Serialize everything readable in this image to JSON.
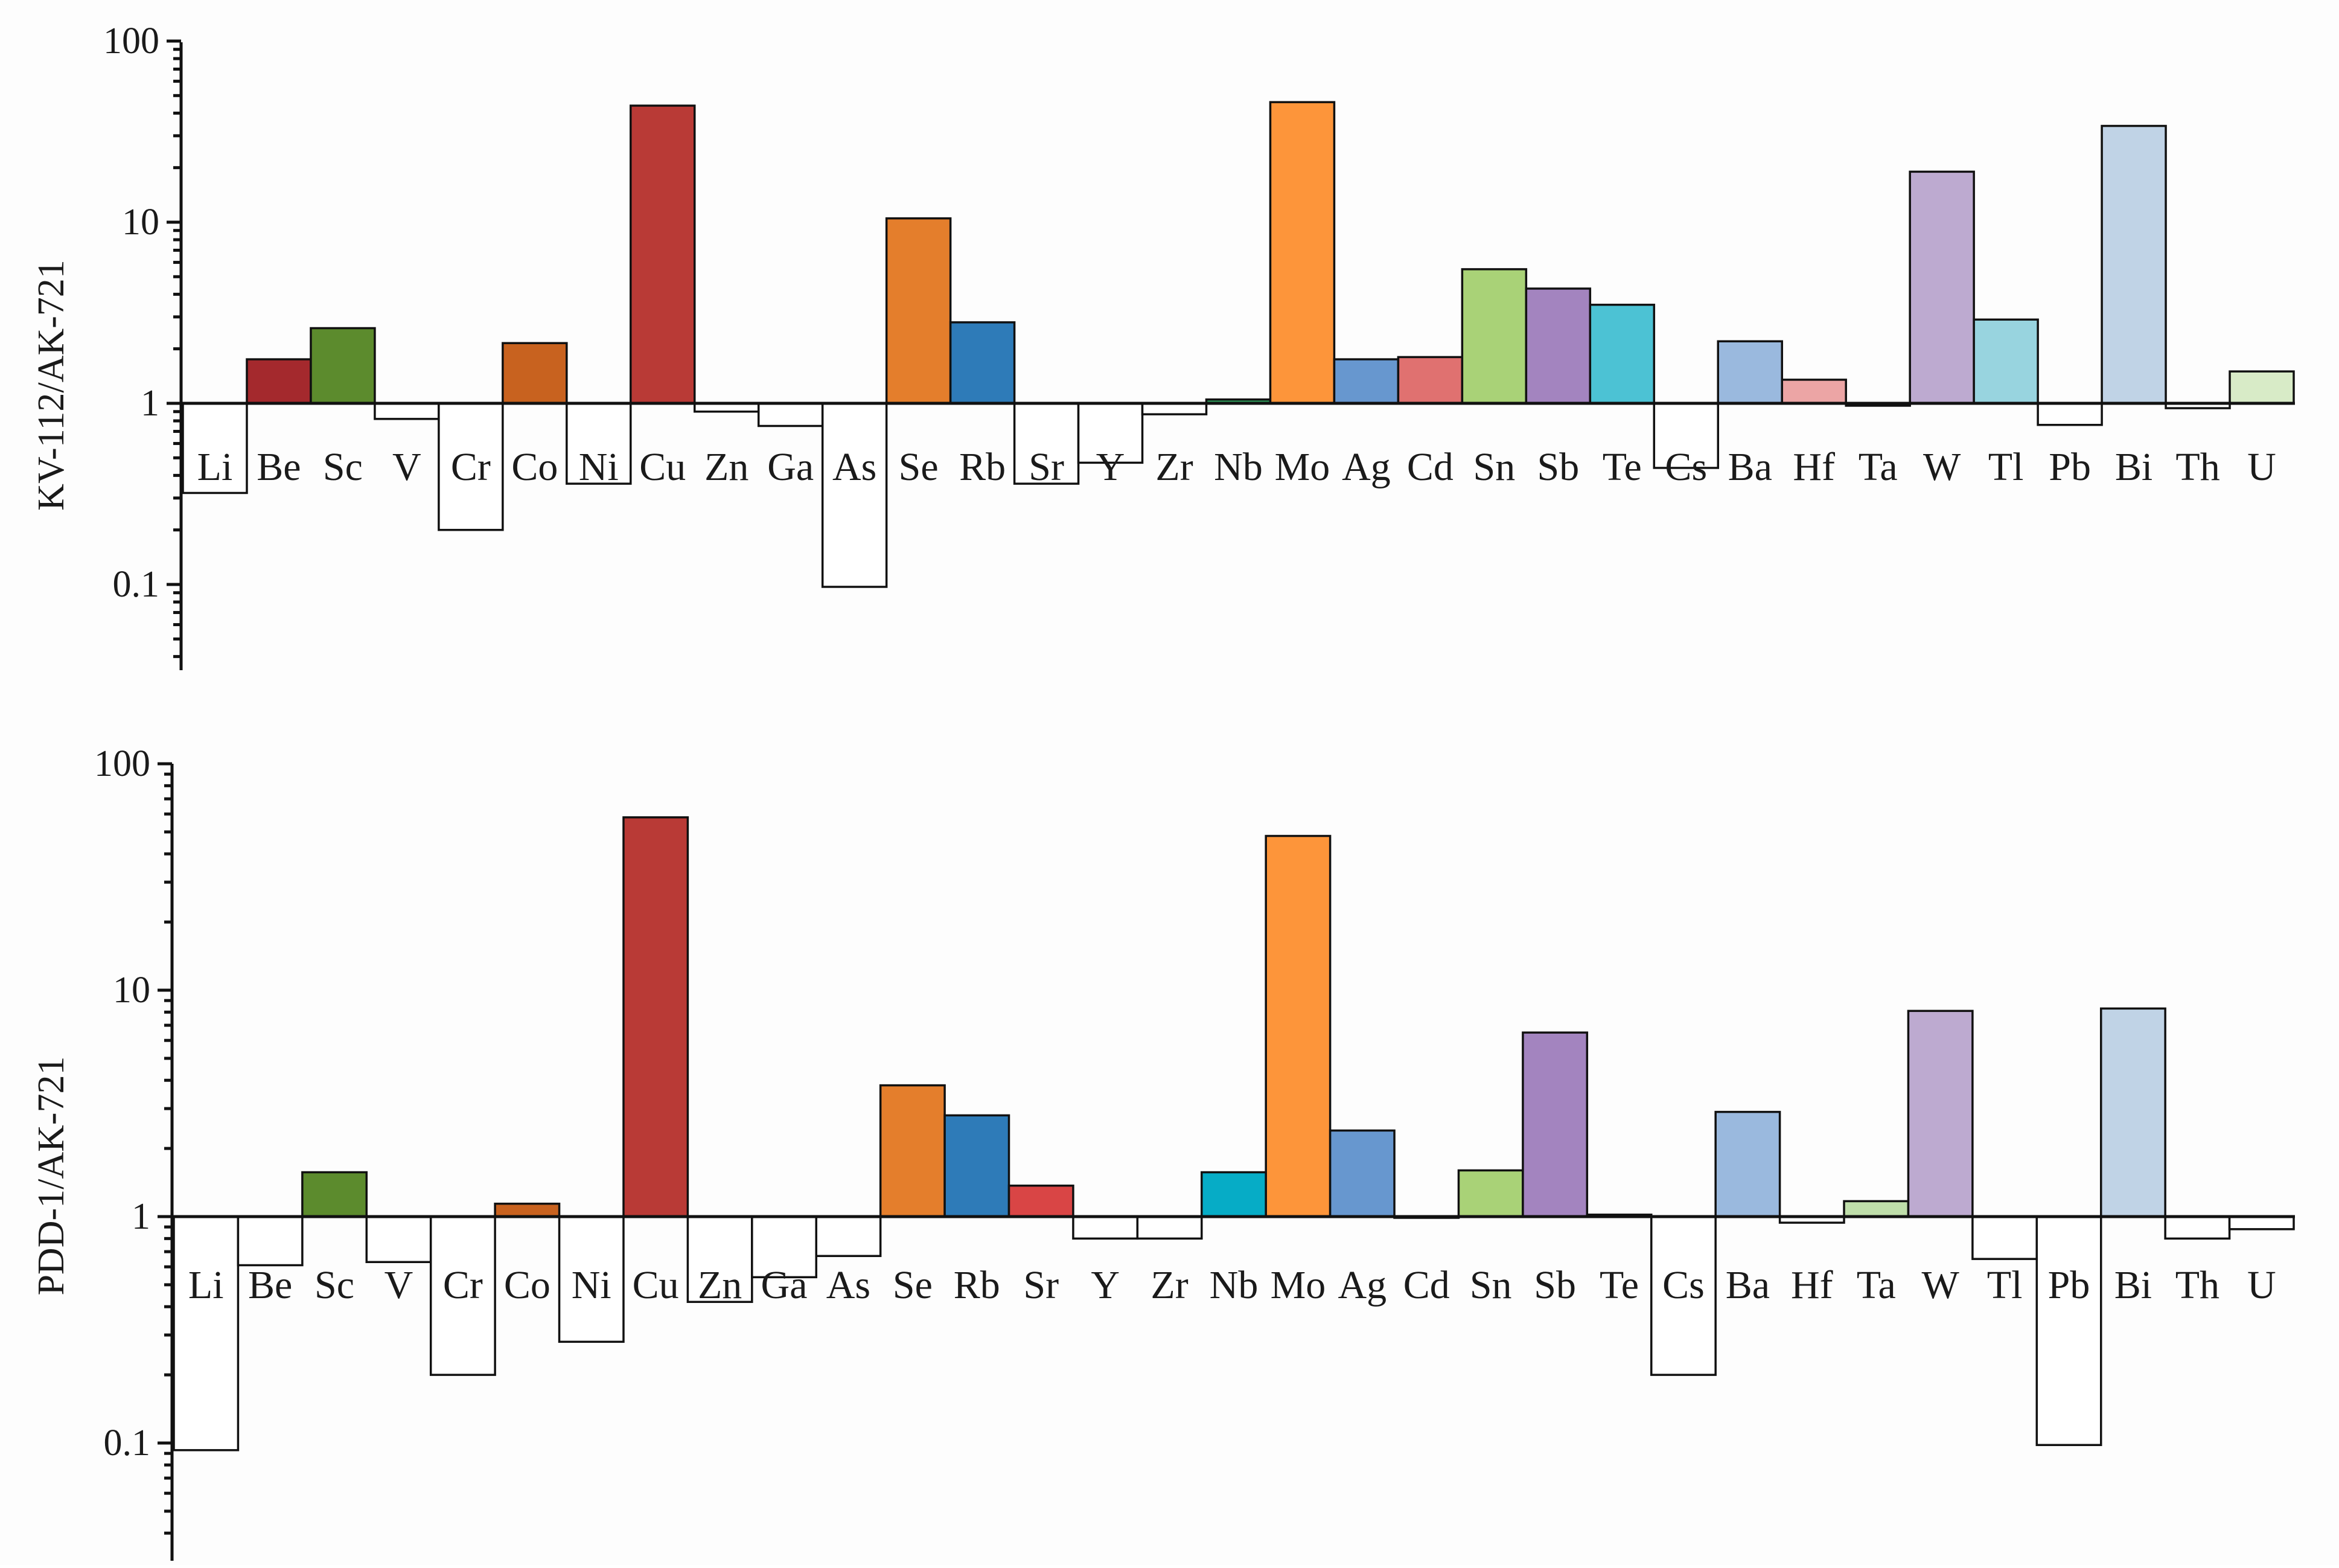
{
  "chart_data": [
    {
      "type": "bar",
      "scale": "log",
      "baseline": 1,
      "ylabel": "KV-112/AK-721",
      "ylim": [
        0.03,
        100
      ],
      "yticks": [
        0.1,
        1,
        10,
        100
      ],
      "ytick_labels": [
        "0.1",
        "1",
        "10",
        "100"
      ],
      "categories": [
        "Li",
        "Be",
        "Sc",
        "V",
        "Cr",
        "Co",
        "Ni",
        "Cu",
        "Zn",
        "Ga",
        "As",
        "Se",
        "Rb",
        "Sr",
        "Y",
        "Zr",
        "Nb",
        "Mo",
        "Ag",
        "Cd",
        "Sn",
        "Sb",
        "Te",
        "Cs",
        "Ba",
        "Hf",
        "Ta",
        "W",
        "Tl",
        "Pb",
        "Bi",
        "Th",
        "U"
      ],
      "values": [
        0.32,
        1.75,
        2.6,
        0.82,
        0.2,
        2.15,
        0.36,
        44,
        0.9,
        0.75,
        0.097,
        10.5,
        2.8,
        0.36,
        0.47,
        0.87,
        1.05,
        46,
        1.75,
        1.8,
        5.5,
        4.3,
        3.5,
        0.44,
        2.2,
        1.35,
        0.97,
        19,
        2.9,
        0.76,
        34,
        0.94,
        1.5
      ],
      "colors": [
        "#ffffff",
        "#a4292d",
        "#5c8b2d",
        "#ffffff",
        "#ffffff",
        "#c8621f",
        "#ffffff",
        "#b93a36",
        "#ffffff",
        "#ffffff",
        "#ffffff",
        "#e47e2c",
        "#2e7bb8",
        "#ffffff",
        "#ffffff",
        "#ffffff",
        "#2e9a5a",
        "#fd953a",
        "#6797cf",
        "#e07170",
        "#a9d277",
        "#a384bf",
        "#4cc2d4",
        "#ffffff",
        "#9ab9de",
        "#eca5a5",
        "#bfdeaa",
        "#bdaad0",
        "#98d4df",
        "#ffffff",
        "#c0d3e6",
        "#ffffff",
        "#d8ebc7"
      ]
    },
    {
      "type": "bar",
      "scale": "log",
      "baseline": 1,
      "ylabel": "PDD-1/AK-721",
      "ylim": [
        0.03,
        100
      ],
      "yticks": [
        0.1,
        1,
        10,
        100
      ],
      "ytick_labels": [
        "0.1",
        "1",
        "10",
        "100"
      ],
      "categories": [
        "Li",
        "Be",
        "Sc",
        "V",
        "Cr",
        "Co",
        "Ni",
        "Cu",
        "Zn",
        "Ga",
        "As",
        "Se",
        "Rb",
        "Sr",
        "Y",
        "Zr",
        "Nb",
        "Mo",
        "Ag",
        "Cd",
        "Sn",
        "Sb",
        "Te",
        "Cs",
        "Ba",
        "Hf",
        "Ta",
        "W",
        "Tl",
        "Pb",
        "Bi",
        "Th",
        "U"
      ],
      "values": [
        0.093,
        0.61,
        1.57,
        0.63,
        0.2,
        1.14,
        0.28,
        58,
        0.42,
        0.54,
        0.67,
        3.8,
        2.8,
        1.37,
        0.8,
        0.8,
        1.57,
        48,
        2.4,
        1.0,
        1.6,
        6.5,
        1.02,
        0.2,
        2.9,
        0.94,
        1.17,
        8.1,
        0.65,
        0.098,
        8.3,
        0.8,
        0.88
      ],
      "colors": [
        "#ffffff",
        "#ffffff",
        "#5c8b2d",
        "#ffffff",
        "#ffffff",
        "#c8621f",
        "#ffffff",
        "#b93a36",
        "#ffffff",
        "#ffffff",
        "#ffffff",
        "#e47e2c",
        "#2e7bb8",
        "#d94545",
        "#ffffff",
        "#ffffff",
        "#06acc6",
        "#fd953a",
        "#6797cf",
        "#ffffff",
        "#a9d277",
        "#a384bf",
        "#4cc2d4",
        "#ffffff",
        "#9ab9de",
        "#ffffff",
        "#bfdeaa",
        "#bdaad0",
        "#ffffff",
        "#ffffff",
        "#c0d3e6",
        "#ffffff",
        "#ffffff"
      ]
    }
  ]
}
